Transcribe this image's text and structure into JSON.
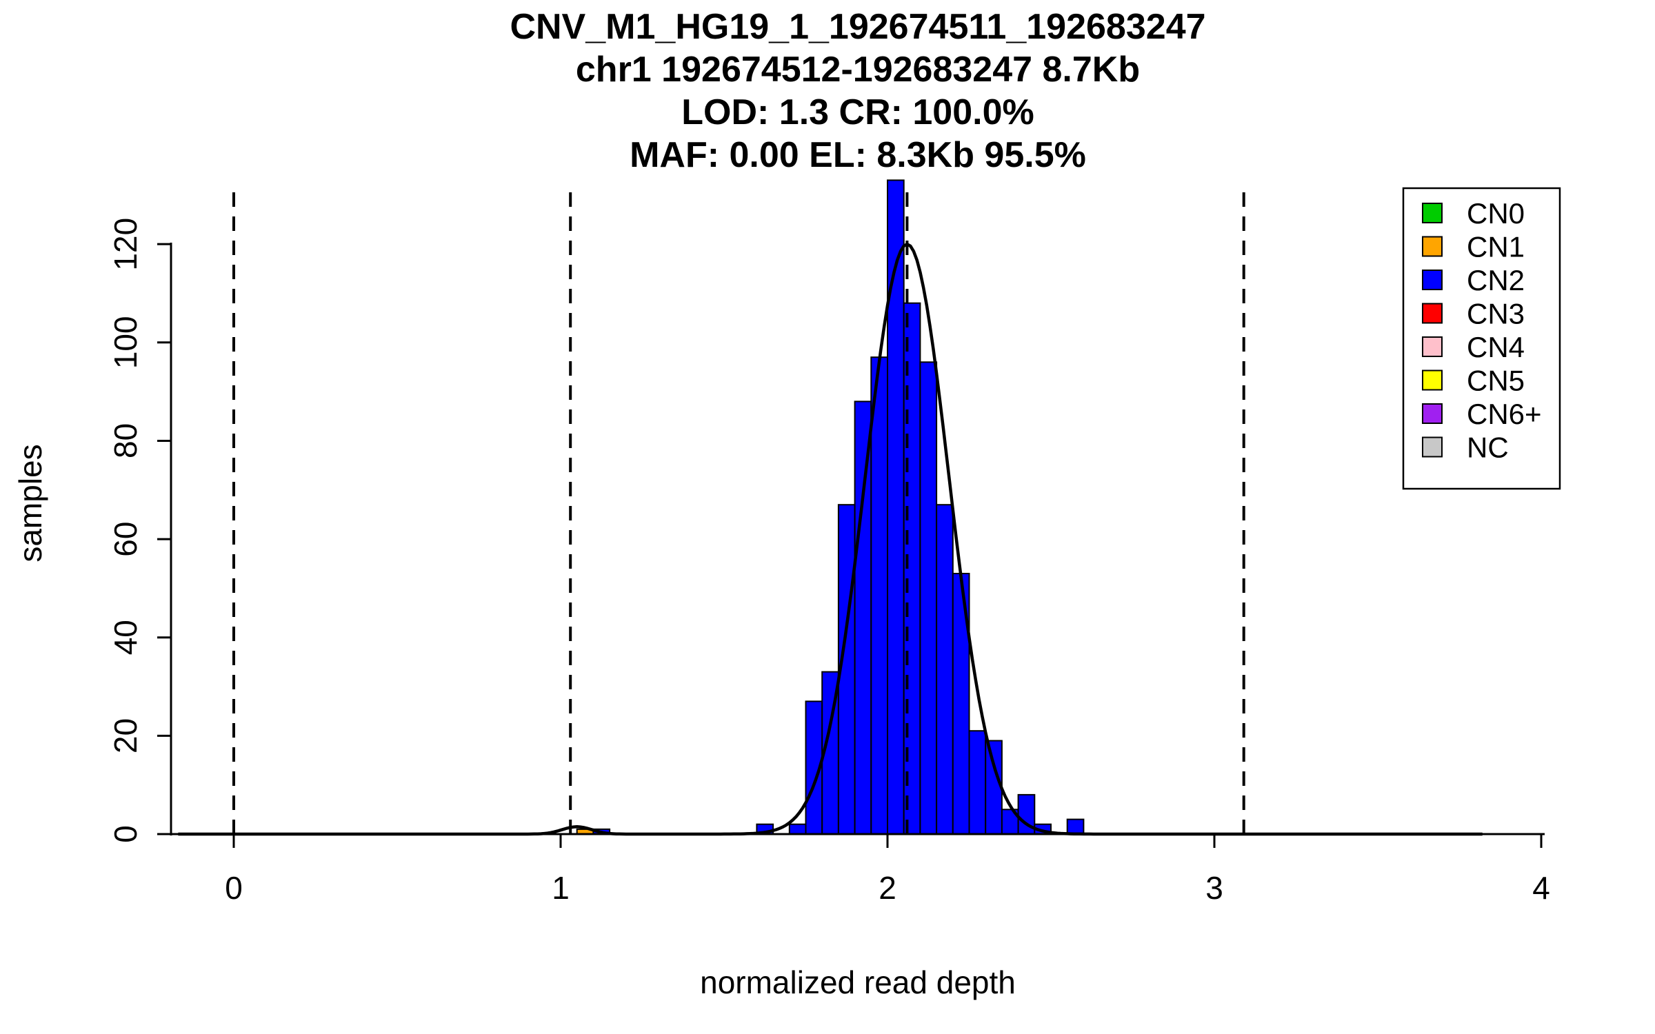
{
  "page": {
    "background": "#FFFFFF",
    "text_color": "#000000"
  },
  "header": {
    "title_lines": [
      "CNV_M1_HG19_1_192674511_192683247",
      "chr1 192674512-192683247 8.7Kb",
      "LOD: 1.3 CR: 100.0%",
      "MAF: 0.00 EL: 8.3Kb 95.5%"
    ]
  },
  "chart_data": {
    "type": "bar",
    "subtype": "histogram-with-density-curve",
    "title": "CNV_M1_HG19_1_192674511_192683247",
    "xlabel": "normalized read depth",
    "ylabel": "samples",
    "x_ticks": [
      0,
      1,
      2,
      3,
      4
    ],
    "y_ticks": [
      0,
      20,
      40,
      60,
      80,
      100,
      120
    ],
    "xlim": [
      -0.3,
      4.17
    ],
    "ylim": [
      0,
      133
    ],
    "grid": false,
    "legend_position": "top-right",
    "dashed_vlines_x": [
      0,
      1.03,
      2.06,
      3.09
    ],
    "bin_width": 0.05,
    "bars": [
      {
        "x": 1.05,
        "h": 1,
        "cn": "CN1",
        "color": "#FFA500"
      },
      {
        "x": 1.1,
        "h": 1,
        "cn": "CN2",
        "color": "#0000FF"
      },
      {
        "x": 1.6,
        "h": 2,
        "cn": "CN2",
        "color": "#0000FF"
      },
      {
        "x": 1.7,
        "h": 2,
        "cn": "CN2",
        "color": "#0000FF"
      },
      {
        "x": 1.75,
        "h": 27,
        "cn": "CN2",
        "color": "#0000FF"
      },
      {
        "x": 1.8,
        "h": 33,
        "cn": "CN2",
        "color": "#0000FF"
      },
      {
        "x": 1.85,
        "h": 67,
        "cn": "CN2",
        "color": "#0000FF"
      },
      {
        "x": 1.9,
        "h": 88,
        "cn": "CN2",
        "color": "#0000FF"
      },
      {
        "x": 1.95,
        "h": 97,
        "cn": "CN2",
        "color": "#0000FF"
      },
      {
        "x": 2.0,
        "h": 133,
        "cn": "CN2",
        "color": "#0000FF"
      },
      {
        "x": 2.05,
        "h": 108,
        "cn": "CN2",
        "color": "#0000FF"
      },
      {
        "x": 2.1,
        "h": 96,
        "cn": "CN2",
        "color": "#0000FF"
      },
      {
        "x": 2.15,
        "h": 67,
        "cn": "CN2",
        "color": "#0000FF"
      },
      {
        "x": 2.2,
        "h": 53,
        "cn": "CN2",
        "color": "#0000FF"
      },
      {
        "x": 2.25,
        "h": 21,
        "cn": "CN2",
        "color": "#0000FF"
      },
      {
        "x": 2.3,
        "h": 19,
        "cn": "CN2",
        "color": "#0000FF"
      },
      {
        "x": 2.35,
        "h": 5,
        "cn": "CN2",
        "color": "#0000FF"
      },
      {
        "x": 2.4,
        "h": 8,
        "cn": "CN2",
        "color": "#0000FF"
      },
      {
        "x": 2.45,
        "h": 2,
        "cn": "CN2",
        "color": "#0000FF"
      },
      {
        "x": 2.55,
        "h": 3,
        "cn": "CN2",
        "color": "#0000FF"
      }
    ],
    "density_curve": {
      "color": "#000000",
      "range": [
        -0.17,
        3.82
      ],
      "components": [
        {
          "mean": 2.06,
          "sd": 0.128,
          "peak": 120
        },
        {
          "mean": 1.05,
          "sd": 0.045,
          "peak": 1.5
        }
      ]
    },
    "legend": {
      "entries": [
        {
          "label": "CN0",
          "color": "#00CC00"
        },
        {
          "label": "CN1",
          "color": "#FFA500"
        },
        {
          "label": "CN2",
          "color": "#0000FF"
        },
        {
          "label": "CN3",
          "color": "#FF0000"
        },
        {
          "label": "CN4",
          "color": "#FFC0CB"
        },
        {
          "label": "CN5",
          "color": "#FFFF00"
        },
        {
          "label": "CN6+",
          "color": "#A020F0"
        },
        {
          "label": "NC",
          "color": "#C8C8C8"
        }
      ]
    }
  }
}
